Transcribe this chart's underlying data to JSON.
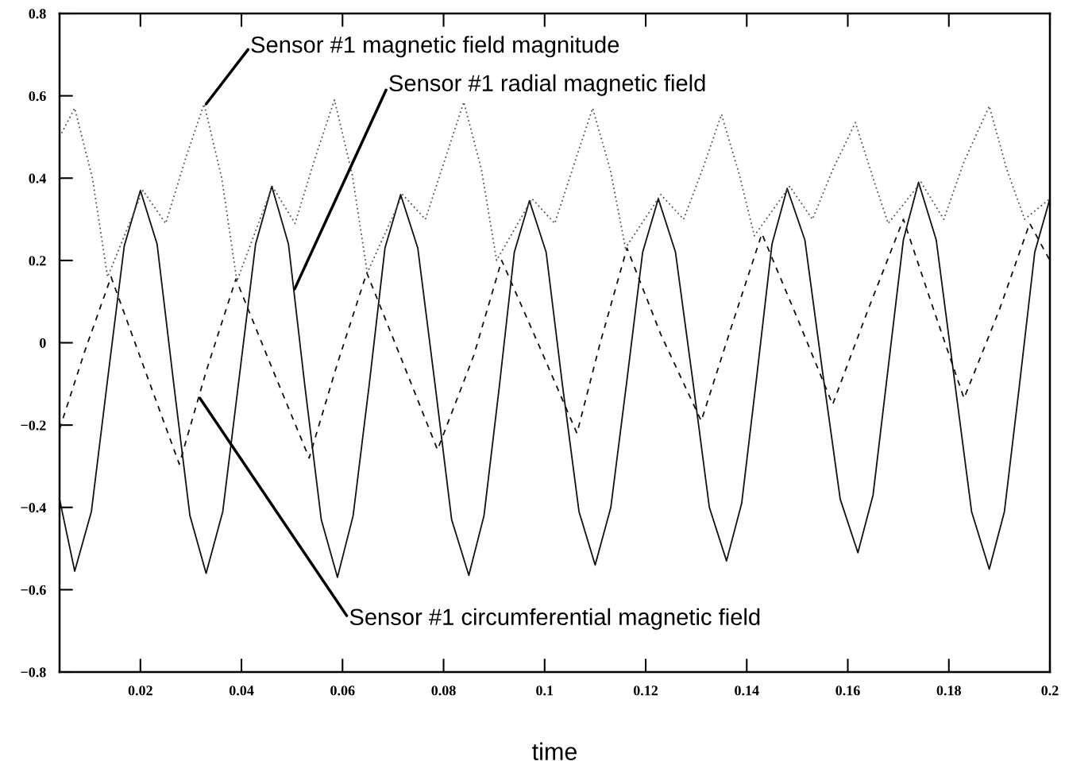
{
  "chart_data": {
    "type": "line",
    "xlabel": "time",
    "x": [
      0.004,
      0.007,
      0.0103,
      0.0135,
      0.0168,
      0.02,
      0.0233,
      0.0265,
      0.0298,
      0.033,
      0.0363,
      0.0395,
      0.0428,
      0.046,
      0.0493,
      0.0525,
      0.0558,
      0.059,
      0.0621,
      0.0653,
      0.0684,
      0.0715,
      0.0749,
      0.0783,
      0.0816,
      0.085,
      0.088,
      0.091,
      0.094,
      0.097,
      0.1003,
      0.1035,
      0.1068,
      0.11,
      0.1131,
      0.1163,
      0.1194,
      0.1225,
      0.1259,
      0.1293,
      0.1326,
      0.136,
      0.139,
      0.142,
      0.145,
      0.148,
      0.1515,
      0.155,
      0.1585,
      0.162,
      0.165,
      0.168,
      0.171,
      0.174,
      0.1775,
      0.181,
      0.1845,
      0.188,
      0.191,
      0.194,
      0.197,
      0.2
    ],
    "series": [
      {
        "color": "#111111",
        "line_style": "solid",
        "values": [
          -0.38,
          -0.555,
          -0.41,
          -0.09,
          0.235,
          0.37,
          0.24,
          -0.09,
          -0.42,
          -0.56,
          -0.41,
          -0.09,
          0.24,
          0.38,
          0.24,
          -0.1,
          -0.43,
          -0.57,
          -0.42,
          -0.1,
          0.23,
          0.36,
          0.23,
          -0.1,
          -0.43,
          -0.565,
          -0.42,
          -0.11,
          0.22,
          0.345,
          0.22,
          -0.1,
          -0.41,
          -0.54,
          -0.4,
          -0.09,
          0.22,
          0.35,
          0.22,
          -0.09,
          -0.4,
          -0.53,
          -0.39,
          -0.08,
          0.24,
          0.375,
          0.25,
          -0.07,
          -0.38,
          -0.51,
          -0.37,
          -0.06,
          0.25,
          0.39,
          0.25,
          -0.08,
          -0.41,
          -0.55,
          -0.41,
          -0.1,
          0.22,
          0.35
        ]
      },
      {
        "color": "#111111",
        "line_style": "dashed",
        "x": [
          0.004,
          0.009,
          0.0142,
          0.021,
          0.0277,
          0.033,
          0.0389,
          0.046,
          0.0534,
          0.059,
          0.0648,
          0.072,
          0.0788,
          0.086,
          0.0915,
          0.099,
          0.1064,
          0.111,
          0.1163,
          0.123,
          0.131,
          0.137,
          0.143,
          0.15,
          0.157,
          0.164,
          0.171,
          0.177,
          0.183,
          0.19,
          0.196,
          0.2
        ],
        "values": [
          -0.21,
          -0.02,
          0.16,
          -0.07,
          -0.295,
          -0.07,
          0.155,
          -0.06,
          -0.28,
          -0.05,
          0.17,
          -0.05,
          -0.26,
          -0.03,
          0.2,
          -0.01,
          -0.22,
          0.0,
          0.23,
          0.02,
          -0.19,
          0.04,
          0.265,
          0.06,
          -0.15,
          0.08,
          0.3,
          0.08,
          -0.135,
          0.08,
          0.29,
          0.2
        ]
      },
      {
        "color": "#555555",
        "line_style": "dotted",
        "x": [
          0.004,
          0.007,
          0.0105,
          0.0135,
          0.0205,
          0.025,
          0.029,
          0.0326,
          0.0361,
          0.0391,
          0.0461,
          0.0506,
          0.0546,
          0.0584,
          0.0619,
          0.0649,
          0.0719,
          0.0764,
          0.0804,
          0.084,
          0.0875,
          0.0905,
          0.0975,
          0.102,
          0.106,
          0.1095,
          0.113,
          0.116,
          0.123,
          0.1275,
          0.1315,
          0.135,
          0.1385,
          0.1415,
          0.1485,
          0.153,
          0.157,
          0.1615,
          0.165,
          0.168,
          0.1745,
          0.179,
          0.183,
          0.188,
          0.1915,
          0.195,
          0.2
        ],
        "values": [
          0.5,
          0.57,
          0.4,
          0.16,
          0.37,
          0.29,
          0.45,
          0.58,
          0.4,
          0.15,
          0.38,
          0.29,
          0.45,
          0.59,
          0.41,
          0.17,
          0.36,
          0.3,
          0.45,
          0.585,
          0.42,
          0.2,
          0.35,
          0.29,
          0.44,
          0.57,
          0.42,
          0.23,
          0.36,
          0.3,
          0.43,
          0.555,
          0.41,
          0.26,
          0.38,
          0.3,
          0.42,
          0.535,
          0.4,
          0.29,
          0.39,
          0.3,
          0.44,
          0.575,
          0.42,
          0.3,
          0.35
        ]
      }
    ],
    "annotations": [
      {
        "text": "Sensor #1 magnetic field magnitude",
        "x": 0.033,
        "y": 0.58
      },
      {
        "text": "Sensor #1 radial magnetic field",
        "x": 0.0505,
        "y": 0.13
      },
      {
        "text": "Sensor #1 circumferential magnetic field",
        "x": 0.0318,
        "y": -0.135
      }
    ],
    "xlim": [
      0.004,
      0.2
    ],
    "xticks": [
      0.02,
      0.04,
      0.06,
      0.08,
      0.1,
      0.12,
      0.14,
      0.16,
      0.18,
      0.2
    ],
    "ylim": [
      -0.8,
      0.8
    ],
    "yticks": [
      {
        "value": -0.8,
        "label": "−0.8"
      },
      {
        "value": -0.6,
        "label": "−0.6"
      },
      {
        "value": -0.4,
        "label": "−0.4"
      },
      {
        "value": -0.2,
        "label": "−0.2"
      },
      0,
      0.2,
      0.4,
      0.6,
      0.8
    ],
    "grid": false,
    "legend": false,
    "marker": "none"
  }
}
